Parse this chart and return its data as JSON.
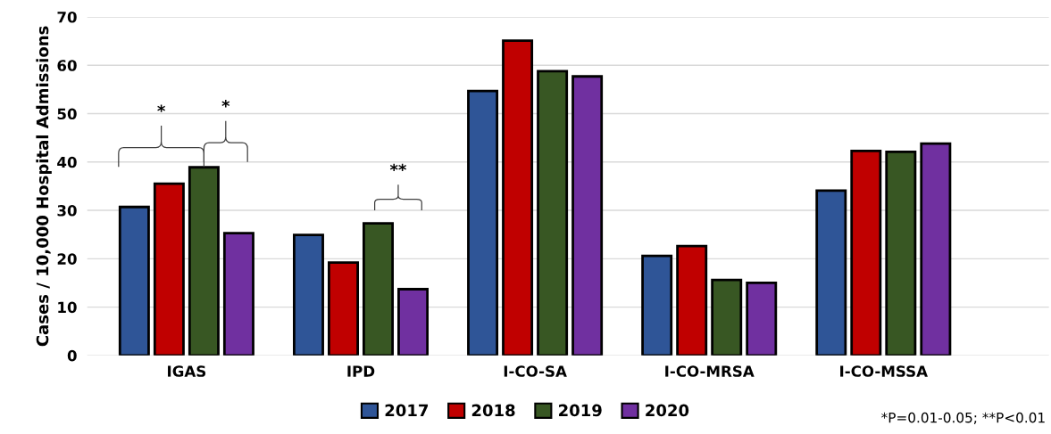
{
  "chart_data": {
    "type": "bar",
    "ylabel": "Cases / 10,000 Hospital Admissions",
    "categories": [
      "IGAS",
      "IPD",
      "I-CO-SA",
      "I-CO-MRSA",
      "I-CO-MSSA"
    ],
    "series": [
      {
        "name": "2017",
        "color": "#2f5597",
        "values": [
          30.7,
          24.9,
          54.7,
          20.6,
          34.1
        ]
      },
      {
        "name": "2018",
        "color": "#c00000",
        "values": [
          35.5,
          19.2,
          65.1,
          22.6,
          42.3
        ]
      },
      {
        "name": "2019",
        "color": "#385723",
        "values": [
          38.9,
          27.3,
          58.8,
          15.6,
          42.1
        ]
      },
      {
        "name": "2020",
        "color": "#7030a0",
        "values": [
          25.3,
          13.7,
          57.7,
          15.0,
          43.8
        ]
      }
    ],
    "ylim": [
      0,
      70
    ],
    "yticks": [
      0,
      10,
      20,
      30,
      40,
      50,
      60,
      70
    ],
    "grid": "y",
    "legend": "bottom",
    "annotations": [
      "*",
      "*",
      "**",
      "*P=0.01-0.05; **P<0.01"
    ]
  }
}
